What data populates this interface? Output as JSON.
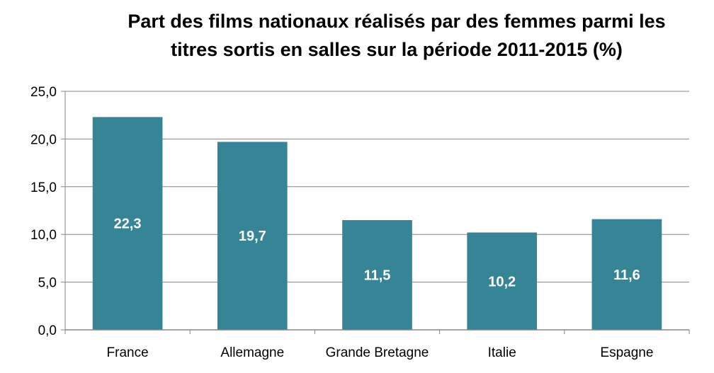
{
  "chart_data": {
    "type": "bar",
    "title_lines": [
      "Part des films nationaux réalisés par des femmes parmi les",
      "titres sortis en salles sur la période 2011-2015 (%)"
    ],
    "categories": [
      "France",
      "Allemagne",
      "Grande Bretagne",
      "Italie",
      "Espagne"
    ],
    "values": [
      22.3,
      19.7,
      11.5,
      10.2,
      11.6
    ],
    "value_labels": [
      "22,3",
      "19,7",
      "11,5",
      "10,2",
      "11,6"
    ],
    "ylim": [
      0,
      25
    ],
    "yticks": [
      0,
      5,
      10,
      15,
      20,
      25
    ],
    "ytick_labels": [
      "0,0",
      "5,0",
      "10,0",
      "15,0",
      "20,0",
      "25,0"
    ],
    "grid": true,
    "legend": "none",
    "bar_color": "#358597",
    "label_color": "#ffffff"
  }
}
